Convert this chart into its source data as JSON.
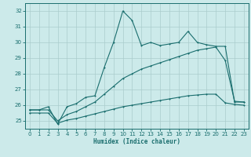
{
  "xlabel": "Humidex (Indice chaleur)",
  "bg_color": "#cceaea",
  "grid_color": "#aacccc",
  "line_color": "#1a6e6e",
  "xlim": [
    -0.5,
    23.5
  ],
  "ylim": [
    24.5,
    32.5
  ],
  "xticks": [
    0,
    1,
    2,
    3,
    4,
    5,
    6,
    7,
    8,
    9,
    10,
    11,
    12,
    13,
    14,
    15,
    16,
    17,
    18,
    19,
    20,
    21,
    22,
    23
  ],
  "yticks": [
    25,
    26,
    27,
    28,
    29,
    30,
    31,
    32
  ],
  "line1_x": [
    0,
    1,
    2,
    3,
    4,
    5,
    6,
    7,
    8,
    9,
    10,
    11,
    12,
    13,
    14,
    15,
    16,
    17,
    18,
    19,
    20,
    21,
    22,
    23
  ],
  "line1_y": [
    25.7,
    25.7,
    25.9,
    24.8,
    25.9,
    26.1,
    26.5,
    26.6,
    28.4,
    30.0,
    32.0,
    31.4,
    29.8,
    30.0,
    29.8,
    29.9,
    30.0,
    30.7,
    30.0,
    29.85,
    29.75,
    29.75,
    26.2,
    26.2
  ],
  "line2_x": [
    0,
    1,
    2,
    3,
    4,
    5,
    6,
    7,
    8,
    9,
    10,
    11,
    12,
    13,
    14,
    15,
    16,
    17,
    18,
    19,
    20,
    21,
    22,
    23
  ],
  "line2_y": [
    25.7,
    25.7,
    25.7,
    25.0,
    25.4,
    25.6,
    25.9,
    26.2,
    26.7,
    27.2,
    27.7,
    28.0,
    28.3,
    28.5,
    28.7,
    28.9,
    29.1,
    29.3,
    29.5,
    29.6,
    29.7,
    28.85,
    26.25,
    26.2
  ],
  "line3_x": [
    0,
    1,
    2,
    3,
    4,
    5,
    6,
    7,
    8,
    9,
    10,
    11,
    12,
    13,
    14,
    15,
    16,
    17,
    18,
    19,
    20,
    21,
    22,
    23
  ],
  "line3_y": [
    25.5,
    25.5,
    25.5,
    24.85,
    25.05,
    25.15,
    25.3,
    25.45,
    25.6,
    25.75,
    25.9,
    26.0,
    26.1,
    26.2,
    26.3,
    26.4,
    26.5,
    26.6,
    26.65,
    26.7,
    26.7,
    26.15,
    26.05,
    26.0
  ]
}
